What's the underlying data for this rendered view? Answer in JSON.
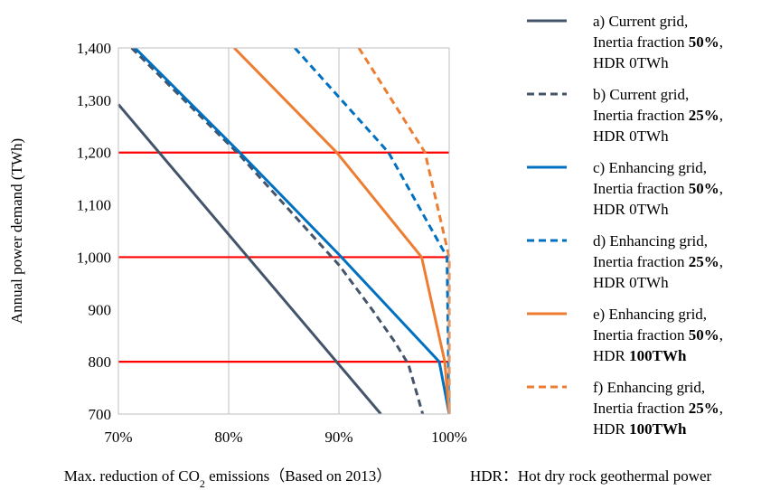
{
  "chart_data": {
    "type": "line",
    "xlabel": {
      "main": "Max. reduction of CO",
      "sub": "2",
      "rest": " emissions（Based on 2013）"
    },
    "ylabel": "Annual power demand (TWh)",
    "xlim": [
      70,
      100
    ],
    "ylim": [
      700,
      1400
    ],
    "x_ticks": [
      70,
      80,
      90,
      100
    ],
    "x_tick_labels": [
      "70%",
      "80%",
      "90%",
      "100%"
    ],
    "y_ticks": [
      700,
      800,
      900,
      1000,
      1100,
      1200,
      1300,
      1400
    ],
    "y_tick_labels": [
      "700",
      "800",
      "900",
      "1,000",
      "1,100",
      "1,200",
      "1,300",
      "1,400"
    ],
    "vertical_grid": true,
    "reference_lines": {
      "y": [
        800,
        1000,
        1200
      ],
      "color": "#ff0000"
    },
    "note": "HDR：Hot dry rock geothermal power",
    "series": [
      {
        "key": "a",
        "style": "solid",
        "color": "#44546a",
        "legend": [
          [
            "a) Current grid,",
            ""
          ],
          [
            "Inertia fraction ",
            "50%",
            ","
          ],
          [
            "HDR 0TWh",
            ""
          ]
        ],
        "points": [
          [
            70,
            1292
          ],
          [
            93.8,
            700
          ]
        ]
      },
      {
        "key": "b",
        "style": "dashed",
        "color": "#44546a",
        "legend": [
          [
            "b) Current grid,",
            ""
          ],
          [
            "Inertia fraction ",
            "25%",
            ","
          ],
          [
            "HDR 0TWh",
            ""
          ]
        ],
        "points": [
          [
            71.2,
            1400
          ],
          [
            81,
            1195
          ],
          [
            87,
            1055
          ],
          [
            90,
            985
          ],
          [
            93,
            900
          ],
          [
            95,
            840
          ],
          [
            96.3,
            795
          ],
          [
            97.6,
            700
          ]
        ]
      },
      {
        "key": "c",
        "style": "solid",
        "color": "#0070c0",
        "legend": [
          [
            "c) Enhancing grid,",
            ""
          ],
          [
            "Inertia fraction ",
            "50%",
            ","
          ],
          [
            "HDR 0TWh",
            ""
          ]
        ],
        "points": [
          [
            71.5,
            1400
          ],
          [
            81,
            1200
          ],
          [
            90,
            1005
          ],
          [
            99.1,
            800
          ],
          [
            100,
            700
          ]
        ]
      },
      {
        "key": "d",
        "style": "dashed",
        "color": "#0070c0",
        "legend": [
          [
            "d) Enhancing grid,",
            ""
          ],
          [
            "Inertia fraction ",
            "25%",
            ","
          ],
          [
            "HDR 0TWh",
            ""
          ]
        ],
        "points": [
          [
            86,
            1400
          ],
          [
            94.5,
            1200
          ],
          [
            99.8,
            1000
          ],
          [
            100,
            700
          ]
        ]
      },
      {
        "key": "e",
        "style": "solid",
        "color": "#ed7d31",
        "legend": [
          [
            "e) Enhancing grid,",
            ""
          ],
          [
            "Inertia fraction ",
            "50%",
            ","
          ],
          [
            "HDR ",
            "100TWh",
            ""
          ]
        ],
        "points": [
          [
            80.5,
            1400
          ],
          [
            89.8,
            1200
          ],
          [
            97.5,
            1000
          ],
          [
            99.6,
            800
          ],
          [
            100,
            700
          ]
        ]
      },
      {
        "key": "f",
        "style": "dashed",
        "color": "#ed7d31",
        "legend": [
          [
            "f) Enhancing grid,",
            ""
          ],
          [
            "Inertia fraction ",
            "25%",
            ","
          ],
          [
            "HDR ",
            "100TWh",
            ""
          ]
        ],
        "points": [
          [
            91.8,
            1400
          ],
          [
            97.8,
            1200
          ],
          [
            100,
            1000
          ],
          [
            100,
            700
          ]
        ]
      }
    ]
  }
}
